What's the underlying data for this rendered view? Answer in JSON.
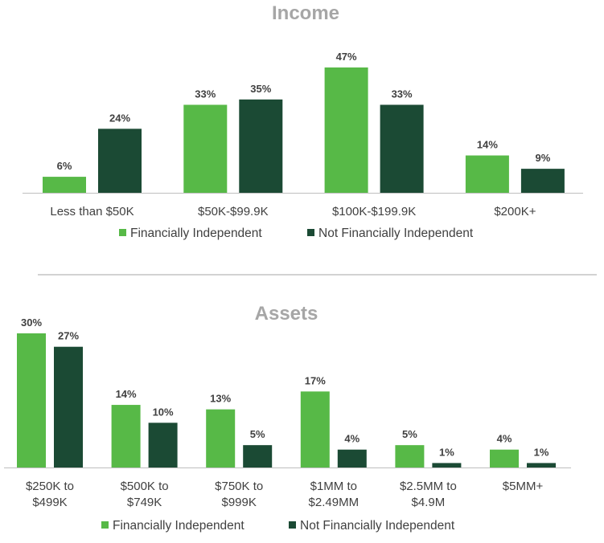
{
  "colors": {
    "financially_independent": "#57b947",
    "not_financially_independent": "#1b4a34",
    "title": "#a6a6a6",
    "text": "#404040",
    "axis": "#bfbfbf",
    "divider": "#a6a6a6"
  },
  "chart_data": [
    {
      "type": "bar",
      "title": "Income",
      "xlabel": "",
      "ylabel": "",
      "ylim": [
        0,
        47
      ],
      "grid": false,
      "legend": "bottom",
      "categories": [
        [
          "Less than $50K"
        ],
        [
          "$50K-$99.9K"
        ],
        [
          "$100K-$199.9K"
        ],
        [
          "$200K+"
        ]
      ],
      "series": [
        {
          "name": "Financially Independent",
          "values": [
            6,
            33,
            47,
            14
          ],
          "labels": [
            "6%",
            "33%",
            "47%",
            "14%"
          ]
        },
        {
          "name": "Not Financially Independent",
          "values": [
            24,
            35,
            33,
            9
          ],
          "labels": [
            "24%",
            "35%",
            "33%",
            "9%"
          ]
        }
      ]
    },
    {
      "type": "bar",
      "title": "Assets",
      "xlabel": "",
      "ylabel": "",
      "ylim": [
        0,
        30
      ],
      "grid": false,
      "legend": "bottom",
      "categories": [
        [
          "$250K to",
          "$499K"
        ],
        [
          "$500K to",
          "$749K"
        ],
        [
          "$750K to",
          "$999K"
        ],
        [
          "$1MM to",
          "$2.49MM"
        ],
        [
          "$2.5MM to",
          "$4.9M"
        ],
        [
          "$5MM+"
        ]
      ],
      "series": [
        {
          "name": "Financially Independent",
          "values": [
            30,
            14,
            13,
            17,
            5,
            4
          ],
          "labels": [
            "30%",
            "14%",
            "13%",
            "17%",
            "5%",
            "4%"
          ]
        },
        {
          "name": "Not Financially Independent",
          "values": [
            27,
            10,
            5,
            4,
            1,
            1
          ],
          "labels": [
            "27%",
            "10%",
            "5%",
            "4%",
            "1%",
            "1%"
          ]
        }
      ]
    }
  ]
}
